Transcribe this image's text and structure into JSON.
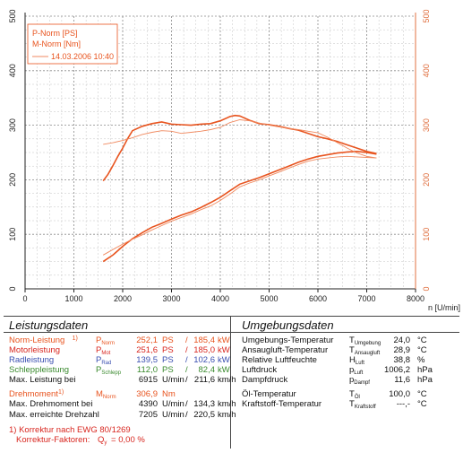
{
  "chart_data": {
    "type": "line",
    "x_axis": {
      "label": "n [U/min]",
      "range": [
        0,
        8000
      ],
      "ticks": [
        "0",
        "1000",
        "2000",
        "3000",
        "4000",
        "5000",
        "6000",
        "7000",
        "8000"
      ]
    },
    "y_axis": {
      "range": [
        0,
        500
      ],
      "ticks": [
        "0",
        "100",
        "200",
        "300",
        "400",
        "500"
      ]
    },
    "y2_axis": {
      "range": [
        0,
        500
      ],
      "ticks": [
        "0",
        "100",
        "200",
        "300",
        "400",
        "500"
      ]
    },
    "grid": true,
    "legend": {
      "placement": "top-left",
      "entries": [
        "P-Norm [PS]",
        "M-Norm [Nm]"
      ],
      "date": "14.03.2006 10:40"
    },
    "colors": {
      "main": "#e8541f",
      "secondary": "#f08a60"
    },
    "series": [
      {
        "name": "P-Norm [PS]",
        "role": "main",
        "x": [
          1600,
          1800,
          2000,
          2200,
          2400,
          2600,
          2800,
          3000,
          3200,
          3400,
          3600,
          3800,
          4000,
          4200,
          4400,
          4600,
          4800,
          5000,
          5200,
          5400,
          5600,
          5800,
          6000,
          6200,
          6400,
          6600,
          6800,
          7000,
          7200
        ],
        "y": [
          50,
          62,
          78,
          92,
          103,
          113,
          120,
          128,
          135,
          141,
          149,
          158,
          168,
          180,
          192,
          198,
          204,
          211,
          218,
          225,
          232,
          238,
          243,
          246,
          249,
          251,
          252,
          250,
          247
        ]
      },
      {
        "name": "M-Norm [Nm]",
        "role": "main",
        "x": [
          1600,
          1700,
          1800,
          1900,
          2000,
          2100,
          2200,
          2400,
          2600,
          2800,
          3000,
          3200,
          3400,
          3600,
          3800,
          4000,
          4200,
          4300,
          4400,
          4600,
          4800,
          5000,
          5200,
          5400,
          5600,
          5800,
          6000,
          6200,
          6400,
          6600,
          6800,
          7000,
          7200
        ],
        "y": [
          198,
          210,
          226,
          243,
          258,
          275,
          290,
          298,
          303,
          306,
          302,
          301,
          300,
          302,
          303,
          308,
          316,
          318,
          317,
          309,
          303,
          301,
          298,
          294,
          291,
          285,
          279,
          275,
          270,
          264,
          258,
          252,
          248
        ]
      },
      {
        "name": "",
        "role": "reference",
        "x": [
          1600,
          1800,
          2000,
          2200,
          2400,
          2600,
          2800,
          3000,
          3200,
          3400,
          3600,
          3800,
          4000,
          4200,
          4400,
          4600,
          4800,
          5000,
          5200,
          5400,
          5600,
          5800,
          6000,
          6200,
          6400,
          6600,
          6800,
          7000,
          7200
        ],
        "y": [
          62,
          72,
          82,
          91,
          99,
          108,
          116,
          124,
          131,
          137,
          145,
          152,
          162,
          174,
          187,
          194,
          200,
          207,
          214,
          221,
          228,
          234,
          238,
          240,
          242,
          243,
          242,
          241,
          240
        ]
      },
      {
        "name": "",
        "role": "reference",
        "x": [
          1600,
          1800,
          2000,
          2200,
          2400,
          2600,
          2800,
          3000,
          3200,
          3400,
          3600,
          3800,
          4000,
          4200,
          4400,
          4600,
          4800,
          5000,
          5200,
          5400,
          5600,
          5800,
          6000,
          6200,
          6400,
          6600,
          6800,
          7000,
          7200
        ],
        "y": [
          265,
          268,
          272,
          277,
          283,
          287,
          290,
          289,
          285,
          287,
          289,
          292,
          296,
          305,
          310,
          308,
          304,
          300,
          297,
          294,
          292,
          289,
          286,
          278,
          268,
          258,
          249,
          243,
          240
        ]
      }
    ]
  },
  "leistungsdaten": {
    "title": "Leistungsdaten",
    "rows": [
      {
        "label": "Norm-Leistung",
        "sup": "1)",
        "sym": "P",
        "sub": "Norm",
        "v1": "252,1",
        "u1": "PS",
        "sep": "/",
        "v2": "185,4",
        "u2": "kW",
        "color": "orange"
      },
      {
        "label": "Motorleistung",
        "sup": "",
        "sym": "P",
        "sub": "Mot",
        "v1": "251,6",
        "u1": "PS",
        "sep": "/",
        "v2": "185,0",
        "u2": "kW",
        "color": "red"
      },
      {
        "label": "Radleistung",
        "sup": "",
        "sym": "P",
        "sub": "Rad",
        "v1": "139,5",
        "u1": "PS",
        "sep": "/",
        "v2": "102,6",
        "u2": "kW",
        "color": "blue"
      },
      {
        "label": "Schleppleistung",
        "sup": "",
        "sym": "P",
        "sub": "Schlepp",
        "v1": "112,0",
        "u1": "PS",
        "sep": "/",
        "v2": "82,4",
        "u2": "kW",
        "color": "green"
      },
      {
        "label": "Max. Leistung bei",
        "sup": "",
        "sym": "",
        "sub": "",
        "v1": "6915",
        "u1": "U/min",
        "sep": "/",
        "v2": "211,6",
        "u2": "km/h",
        "color": "dark"
      },
      {
        "label": "Drehmoment",
        "sup": "1)",
        "sym": "M",
        "sub": "Norm",
        "v1": "306,9",
        "u1": "Nm",
        "sep": "",
        "v2": "",
        "u2": "",
        "color": "orange"
      },
      {
        "label": "Max. Drehmoment bei",
        "sup": "",
        "sym": "",
        "sub": "",
        "v1": "4390",
        "u1": "U/min",
        "sep": "/",
        "v2": "134,3",
        "u2": "km/h",
        "color": "dark"
      },
      {
        "label": "Max. erreichte Drehzahl",
        "sup": "",
        "sym": "",
        "sub": "",
        "v1": "7205",
        "u1": "U/min",
        "sep": "/",
        "v2": "220,5",
        "u2": "km/h",
        "color": "dark"
      }
    ],
    "footnote_line1": "1) Korrektur nach EWG 80/1269",
    "footnote_label": "Korrektur-Faktoren:",
    "footnote_sym": "Q",
    "footnote_sub": "y",
    "footnote_value": "= 0,00 %"
  },
  "umgebungsdaten": {
    "title": "Umgebungsdaten",
    "rows": [
      {
        "label": "Umgebungs-Temperatur",
        "sym": "T",
        "sub": "Umgebung",
        "value": "24,0",
        "unit": "°C"
      },
      {
        "label": "Ansaugluft-Temperatur",
        "sym": "T",
        "sub": "Ansaugluft",
        "value": "28,9",
        "unit": "°C"
      },
      {
        "label": "Relative Luftfeuchte",
        "sym": "H",
        "sub": "Luft",
        "value": "38,8",
        "unit": "%"
      },
      {
        "label": "Luftdruck",
        "sym": "p",
        "sub": "Luft",
        "value": "1006,2",
        "unit": "hPa"
      },
      {
        "label": "Dampfdruck",
        "sym": "p",
        "sub": "Dampf",
        "value": "11,6",
        "unit": "hPa"
      },
      {
        "label": "Öl-Temperatur",
        "sym": "T",
        "sub": "Öl",
        "value": "100,0",
        "unit": "°C"
      },
      {
        "label": "Kraftstoff-Temperatur",
        "sym": "T",
        "sub": "Kraftstoff",
        "value": "---,-",
        "unit": "°C"
      }
    ]
  }
}
